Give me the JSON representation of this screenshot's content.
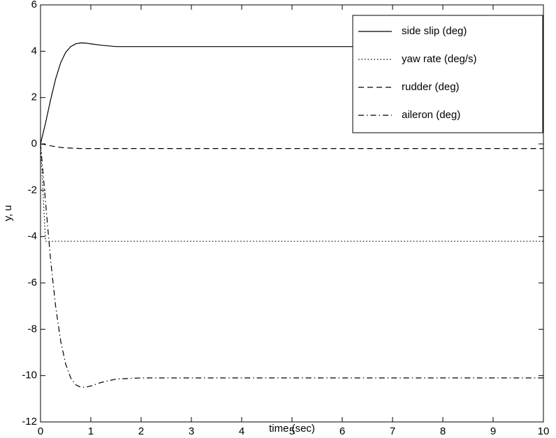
{
  "chart_data": {
    "type": "line",
    "x_label": "time (sec)",
    "y_label": "y, u",
    "x": [
      0,
      0.1,
      0.2,
      0.3,
      0.4,
      0.5,
      0.6,
      0.7,
      0.8,
      0.9,
      1,
      1.2,
      1.5,
      2,
      4,
      6,
      8,
      10
    ],
    "series": [
      {
        "name": "side slip (deg)",
        "color": "#000000",
        "dash": "solid",
        "values": [
          0,
          0.9,
          1.9,
          2.8,
          3.5,
          3.95,
          4.2,
          4.32,
          4.36,
          4.35,
          4.32,
          4.26,
          4.2,
          4.2,
          4.2,
          4.2,
          4.2,
          4.2
        ]
      },
      {
        "name": "yaw rate (deg/s)",
        "color": "#000000",
        "dash": "dotted",
        "values": [
          0,
          -4.2,
          -4.2,
          -4.2,
          -4.2,
          -4.2,
          -4.2,
          -4.2,
          -4.2,
          -4.2,
          -4.2,
          -4.2,
          -4.2,
          -4.2,
          -4.2,
          -4.2,
          -4.2,
          -4.2
        ]
      },
      {
        "name": "rudder (deg)",
        "color": "#000000",
        "dash": "dashed",
        "values": [
          0,
          -0.03,
          -0.08,
          -0.12,
          -0.15,
          -0.17,
          -0.18,
          -0.19,
          -0.2,
          -0.2,
          -0.2,
          -0.2,
          -0.2,
          -0.2,
          -0.2,
          -0.2,
          -0.2,
          -0.2
        ]
      },
      {
        "name": "aileron (deg)",
        "color": "#000000",
        "dash": "dashdot",
        "values": [
          0,
          -2.5,
          -5,
          -7,
          -8.5,
          -9.5,
          -10.1,
          -10.4,
          -10.5,
          -10.5,
          -10.45,
          -10.3,
          -10.15,
          -10.1,
          -10.1,
          -10.1,
          -10.1,
          -10.1
        ]
      }
    ],
    "xlim": [
      0,
      10
    ],
    "xticks": [
      0,
      1,
      2,
      3,
      4,
      5,
      6,
      7,
      8,
      9,
      10
    ],
    "ylim": [
      -12,
      6
    ],
    "yticks": [
      -12,
      -10,
      -8,
      -6,
      -4,
      -2,
      0,
      2,
      4,
      6
    ],
    "grid": false,
    "legend": "upper right"
  }
}
